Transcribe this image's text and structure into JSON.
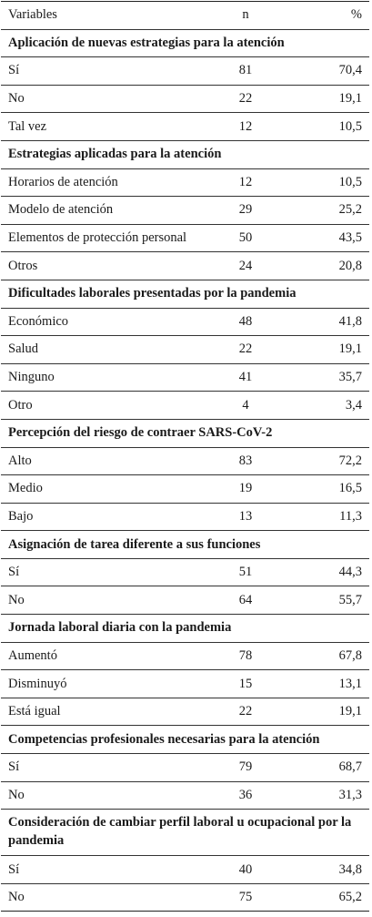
{
  "header": {
    "variables": "Variables",
    "n": "n",
    "pct": "%"
  },
  "sections": [
    {
      "title": "Aplicación de nuevas estrategias para la atención",
      "rows": [
        {
          "label": "Sí",
          "n": "81",
          "pct": "70,4"
        },
        {
          "label": "No",
          "n": "22",
          "pct": "19,1"
        },
        {
          "label": "Tal vez",
          "n": "12",
          "pct": "10,5"
        }
      ]
    },
    {
      "title": "Estrategias aplicadas para la atención",
      "rows": [
        {
          "label": "Horarios de atención",
          "n": "12",
          "pct": "10,5"
        },
        {
          "label": "Modelo de atención",
          "n": "29",
          "pct": "25,2"
        },
        {
          "label": "Elementos de protección personal",
          "n": "50",
          "pct": "43,5"
        },
        {
          "label": "Otros",
          "n": "24",
          "pct": "20,8"
        }
      ]
    },
    {
      "title": "Dificultades laborales presentadas por la pandemia",
      "rows": [
        {
          "label": "Económico",
          "n": "48",
          "pct": "41,8"
        },
        {
          "label": "Salud",
          "n": "22",
          "pct": "19,1"
        },
        {
          "label": "Ninguno",
          "n": "41",
          "pct": "35,7"
        },
        {
          "label": "Otro",
          "n": "4",
          "pct": "3,4"
        }
      ]
    },
    {
      "title": "Percepción del riesgo de contraer SARS-CoV-2",
      "rows": [
        {
          "label": "Alto",
          "n": "83",
          "pct": "72,2"
        },
        {
          "label": "Medio",
          "n": "19",
          "pct": "16,5"
        },
        {
          "label": "Bajo",
          "n": "13",
          "pct": "11,3"
        }
      ]
    },
    {
      "title": "Asignación de tarea diferente a sus funciones",
      "rows": [
        {
          "label": "Sí",
          "n": "51",
          "pct": "44,3"
        },
        {
          "label": "No",
          "n": "64",
          "pct": "55,7"
        }
      ]
    },
    {
      "title": "Jornada laboral diaria con la pandemia",
      "rows": [
        {
          "label": "Aumentó",
          "n": "78",
          "pct": "67,8"
        },
        {
          "label": "Disminuyó",
          "n": "15",
          "pct": "13,1"
        },
        {
          "label": "Está igual",
          "n": "22",
          "pct": "19,1"
        }
      ]
    },
    {
      "title": "Competencias profesionales necesarias para la atención",
      "rows": [
        {
          "label": "Sí",
          "n": "79",
          "pct": "68,7"
        },
        {
          "label": "No",
          "n": "36",
          "pct": "31,3"
        }
      ]
    },
    {
      "title": "Consideración de cambiar perfil laboral u ocupacional por la pandemia",
      "rows": [
        {
          "label": "Sí",
          "n": "40",
          "pct": "34,8"
        },
        {
          "label": "No",
          "n": "75",
          "pct": "65,2"
        }
      ]
    }
  ]
}
